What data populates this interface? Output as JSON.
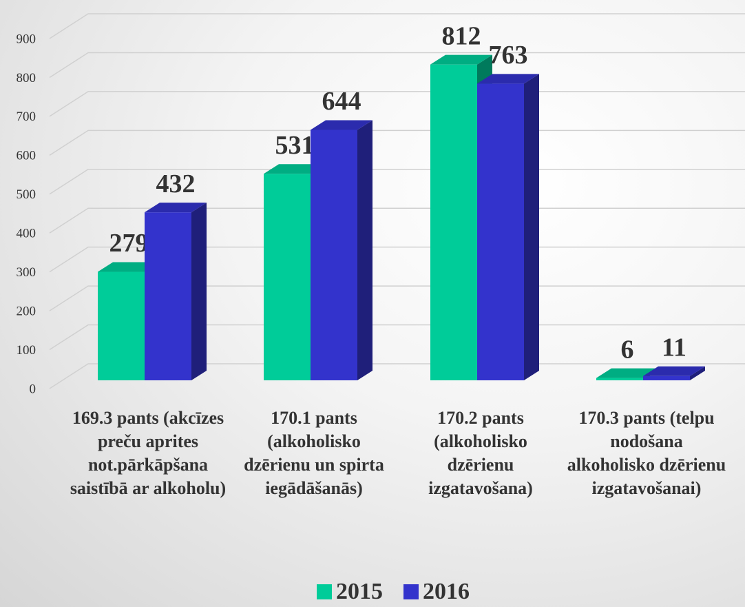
{
  "chart_data": {
    "type": "bar3d",
    "categories": [
      "169.3 pants (akcīzes preču aprites not.pārkāpšana saistībā ar alkoholu)",
      "170.1 pants (alkoholisko dzērienu un spirta iegādāšanās)",
      "170.2 pants (alkoholisko dzērienu izgatavošana)",
      "170.3 pants (telpu nodošana alkoholisko dzērienu izgatavošanai)"
    ],
    "series": [
      {
        "name": "2015",
        "color": "#00cc99",
        "values": [
          279,
          531,
          812,
          6
        ]
      },
      {
        "name": "2016",
        "color": "#3333cc",
        "values": [
          432,
          644,
          763,
          11
        ]
      }
    ],
    "ylim": [
      0,
      900
    ],
    "yticks": [
      0,
      100,
      200,
      300,
      400,
      500,
      600,
      700,
      800,
      900
    ],
    "grid": true,
    "legend": "bottom"
  }
}
